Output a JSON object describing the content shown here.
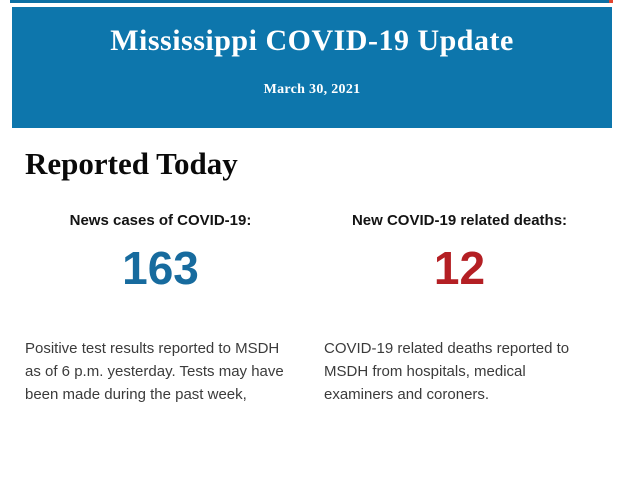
{
  "header": {
    "title": "Mississippi COVID-19 Update",
    "date": "March 30, 2021",
    "background_color": "#0d76ac",
    "text_color": "#ffffff"
  },
  "section": {
    "title": "Reported Today"
  },
  "stats": [
    {
      "label": "News cases of COVID-19:",
      "value": "163",
      "value_color": "#176b9e",
      "description": "Positive test results reported to MSDH as of 6 p.m. yesterday. Tests may have been made during the past week,"
    },
    {
      "label": "New COVID-19 related deaths:",
      "value": "12",
      "value_color": "#b41f24",
      "description": "COVID-19 related deaths reported to MSDH from hospitals, medical examiners and coroners."
    }
  ]
}
